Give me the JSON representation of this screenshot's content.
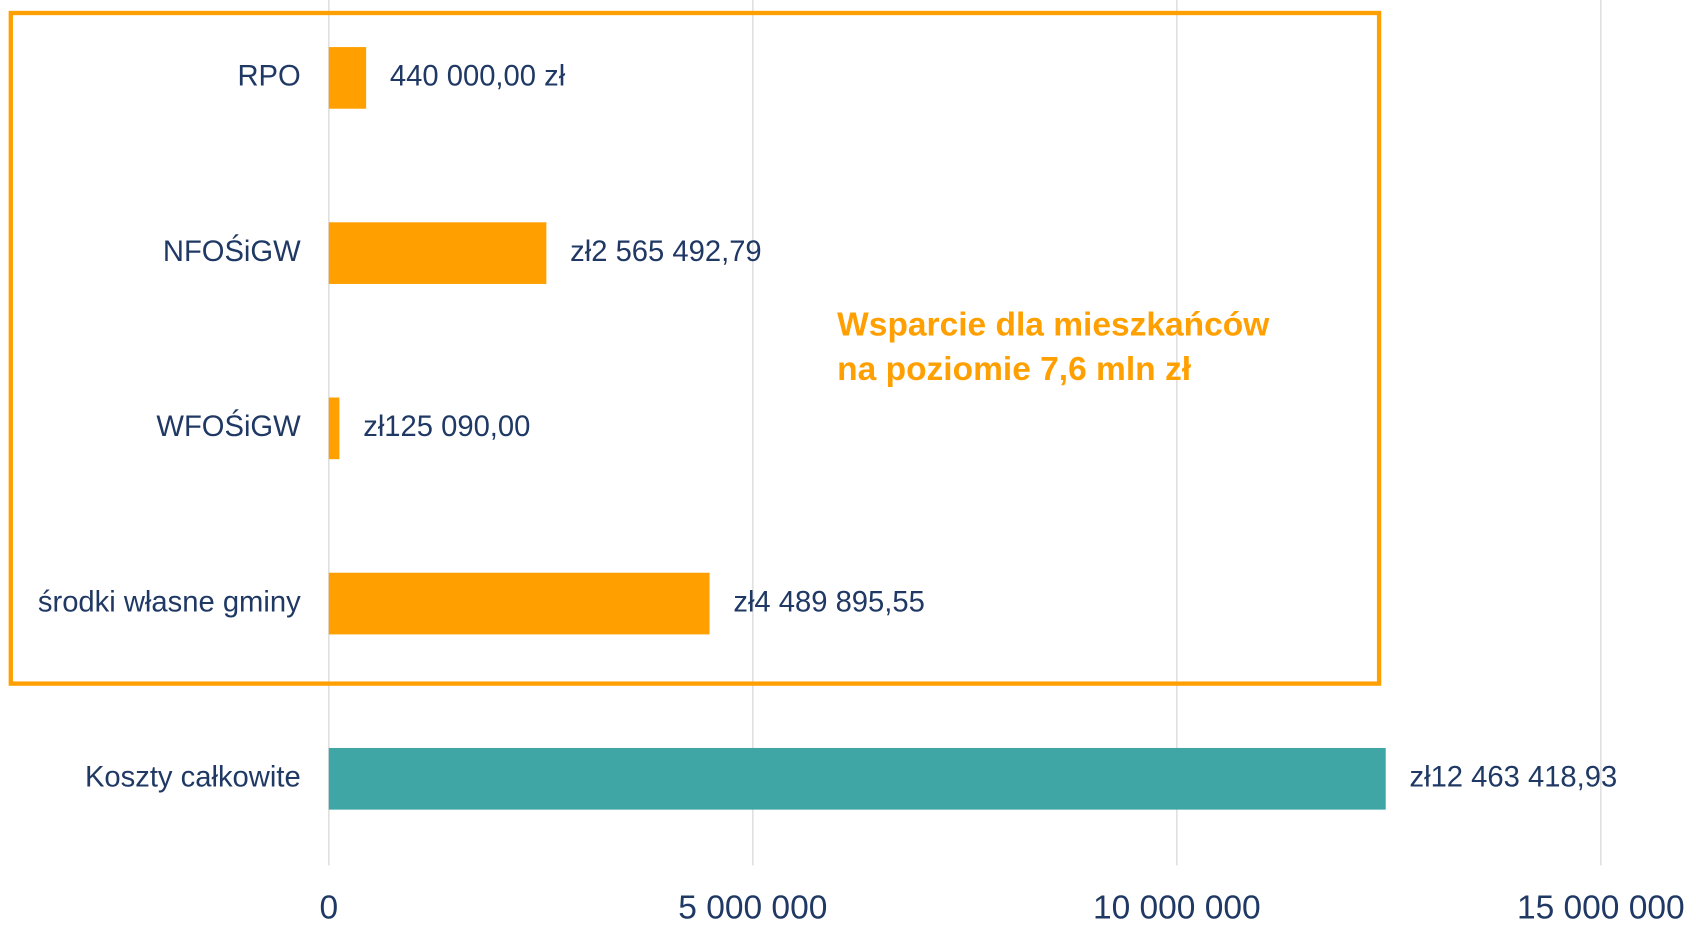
{
  "chart_data": {
    "type": "hbar",
    "categories": [
      "RPO",
      "NFOŚiGW",
      "WFOŚiGW",
      "środki własne gminy",
      "Koszty całkowite"
    ],
    "values": [
      440000,
      2565492.79,
      125090,
      4489895.55,
      12463418.93
    ],
    "value_labels": [
      "440 000,00 zł",
      "zł2 565 492,79",
      "zł125 090,00",
      "zł4 489 895,55",
      "zł12 463 418,93"
    ],
    "colors": [
      "#ffa000",
      "#ffa000",
      "#ffa000",
      "#ffa000",
      "#3fa5a5"
    ],
    "xlim": [
      0,
      15000000
    ],
    "xticks": [
      0,
      {
        "value": 5000000,
        "label": "5 000 000"
      },
      {
        "value": 10000000,
        "label": "10 000 000"
      },
      {
        "value": 15000000,
        "label": "15 000 000"
      }
    ],
    "grid": true,
    "annotation": [
      "Wsparcie dla mieszkańców",
      "na poziomie 7,6 mln zł"
    ]
  }
}
